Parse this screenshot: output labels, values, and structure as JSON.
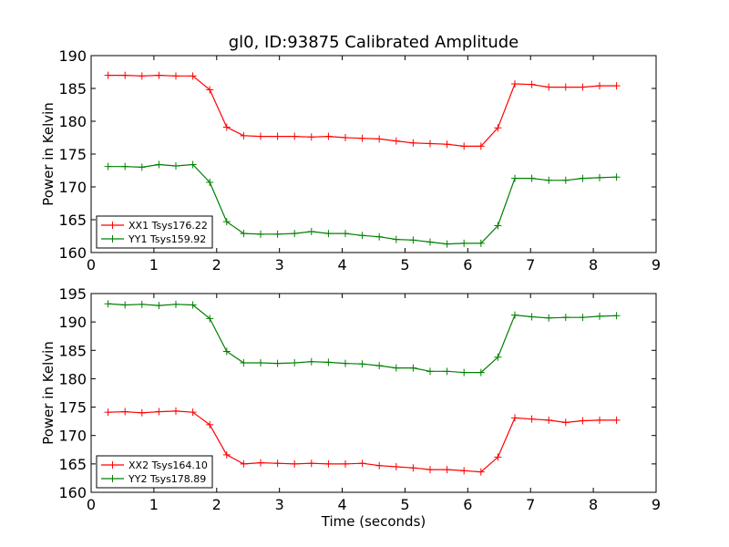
{
  "chart_data": [
    {
      "type": "line",
      "title": "gl0, ID:93875 Calibrated Amplitude",
      "xlabel": "",
      "ylabel": "Power in Kelvin",
      "xlim": [
        0,
        9
      ],
      "ylim": [
        160,
        190
      ],
      "xticks": [
        "0",
        "1",
        "2",
        "3",
        "4",
        "5",
        "6",
        "7",
        "8",
        "9"
      ],
      "yticks": [
        "160",
        "165",
        "170",
        "175",
        "180",
        "185",
        "190"
      ],
      "legend_position": "lower-left",
      "grid": false,
      "x": [
        0.27,
        0.54,
        0.81,
        1.08,
        1.35,
        1.62,
        1.89,
        2.16,
        2.43,
        2.7,
        2.97,
        3.24,
        3.51,
        3.78,
        4.05,
        4.32,
        4.59,
        4.86,
        5.13,
        5.4,
        5.67,
        5.94,
        6.21,
        6.48,
        6.75,
        7.02,
        7.29,
        7.56,
        7.83,
        8.1,
        8.37
      ],
      "series": [
        {
          "name": "XX1 Tsys176.22",
          "color": "#ff0000",
          "values": [
            187.0,
            187.0,
            186.9,
            187.0,
            186.9,
            186.9,
            184.8,
            179.1,
            177.8,
            177.7,
            177.7,
            177.7,
            177.6,
            177.7,
            177.5,
            177.4,
            177.3,
            177.0,
            176.7,
            176.6,
            176.5,
            176.2,
            176.2,
            179.0,
            185.7,
            185.6,
            185.2,
            185.2,
            185.2,
            185.4,
            185.4
          ]
        },
        {
          "name": "YY1 Tsys159.92",
          "color": "#008000",
          "values": [
            173.1,
            173.1,
            173.0,
            173.4,
            173.2,
            173.4,
            170.7,
            164.7,
            162.9,
            162.8,
            162.8,
            162.9,
            163.2,
            162.9,
            162.9,
            162.6,
            162.4,
            162.0,
            161.9,
            161.6,
            161.3,
            161.4,
            161.4,
            164.1,
            171.3,
            171.3,
            171.0,
            171.0,
            171.3,
            171.4,
            171.5
          ]
        }
      ]
    },
    {
      "type": "line",
      "title": "",
      "xlabel": "Time (seconds)",
      "ylabel": "Power in Kelvin",
      "xlim": [
        0,
        9
      ],
      "ylim": [
        160,
        195
      ],
      "xticks": [
        "0",
        "1",
        "2",
        "3",
        "4",
        "5",
        "6",
        "7",
        "8",
        "9"
      ],
      "yticks": [
        "160",
        "165",
        "170",
        "175",
        "180",
        "185",
        "190",
        "195"
      ],
      "legend_position": "lower-left",
      "grid": false,
      "x": [
        0.27,
        0.54,
        0.81,
        1.08,
        1.35,
        1.62,
        1.89,
        2.16,
        2.43,
        2.7,
        2.97,
        3.24,
        3.51,
        3.78,
        4.05,
        4.32,
        4.59,
        4.86,
        5.13,
        5.4,
        5.67,
        5.94,
        6.21,
        6.48,
        6.75,
        7.02,
        7.29,
        7.56,
        7.83,
        8.1,
        8.37
      ],
      "series": [
        {
          "name": "XX2 Tsys164.10",
          "color": "#ff0000",
          "values": [
            174.1,
            174.2,
            174.0,
            174.2,
            174.3,
            174.1,
            171.9,
            166.6,
            165.0,
            165.2,
            165.1,
            165.0,
            165.1,
            165.0,
            165.0,
            165.1,
            164.7,
            164.5,
            164.3,
            164.0,
            164.0,
            163.8,
            163.6,
            166.2,
            173.1,
            172.9,
            172.7,
            172.3,
            172.6,
            172.7,
            172.7
          ]
        },
        {
          "name": "YY2 Tsys178.89",
          "color": "#008000",
          "values": [
            193.2,
            193.0,
            193.1,
            192.9,
            193.1,
            193.0,
            190.6,
            184.8,
            182.8,
            182.8,
            182.7,
            182.8,
            183.0,
            182.9,
            182.7,
            182.6,
            182.3,
            181.9,
            181.9,
            181.3,
            181.3,
            181.1,
            181.1,
            183.8,
            191.2,
            190.9,
            190.7,
            190.8,
            190.8,
            191.0,
            191.1
          ]
        }
      ]
    }
  ]
}
